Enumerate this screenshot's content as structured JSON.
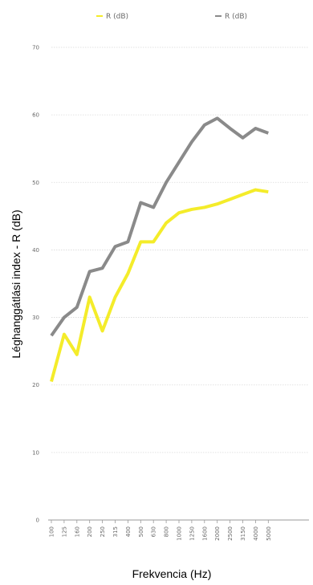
{
  "chart_data": {
    "type": "line",
    "xlabel": "Frekvencia (Hz)",
    "ylabel": "Léghanggátlási index - R (dB)",
    "ylim": [
      0,
      70
    ],
    "yticks": [
      0,
      10,
      20,
      30,
      40,
      50,
      60,
      70
    ],
    "grid": true,
    "legend_position": "top",
    "categories": [
      "100",
      "125",
      "160",
      "200",
      "250",
      "315",
      "400",
      "500",
      "630",
      "800",
      "1000",
      "1250",
      "1600",
      "2000",
      "2500",
      "3150",
      "4000",
      "5000"
    ],
    "series": [
      {
        "name": "R (dB)",
        "color": "#f4ec2a",
        "values": [
          20.5,
          27.5,
          24.5,
          33.0,
          28.0,
          33.0,
          36.5,
          41.2,
          41.2,
          44.0,
          45.5,
          46.0,
          46.3,
          46.8,
          47.5,
          48.2,
          48.9,
          48.6
        ]
      },
      {
        "name": "R (dB)",
        "color": "#8a8a8a",
        "values": [
          27.3,
          30.0,
          31.5,
          36.8,
          37.3,
          40.5,
          41.2,
          47.0,
          46.3,
          50.0,
          53.0,
          56.0,
          58.5,
          59.5,
          58.0,
          56.6,
          58.0,
          57.3
        ]
      }
    ]
  }
}
